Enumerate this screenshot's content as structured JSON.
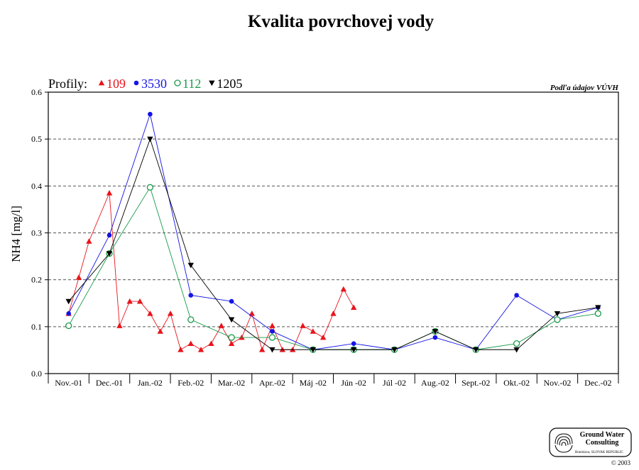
{
  "chart_data": {
    "type": "line",
    "title": "Kvalita povrchovej vody",
    "ylabel": "NH4 [mg/l]",
    "xlabel": "",
    "ylim": [
      0,
      0.6
    ],
    "yticks": [
      "0.0",
      "0.1",
      "0.2",
      "0.3",
      "0.4",
      "0.5",
      "0.6"
    ],
    "grid": "horizontal dashed",
    "months": [
      "Nov.-01",
      "Dec.-01",
      "Jan.-02",
      "Feb.-02",
      "Mar.-02",
      "Apr.-02",
      "Máj -02",
      "Jún -02",
      "Júl -02",
      "Aug.-02",
      "Sept.-02",
      "Okt.-02",
      "Nov.-02",
      "Dec.-02"
    ],
    "legend": {
      "prefix": "Profily:",
      "placement": "top-left above plot"
    },
    "source_note": "Podľa údajov VÚVH",
    "series": [
      {
        "name": "109",
        "marker": "triangle-up",
        "color": "#e8141b",
        "points": [
          [
            0,
            0.128
          ],
          [
            0.5,
            0.205
          ],
          [
            1,
            0.282
          ],
          [
            2,
            0.385
          ],
          [
            2.5,
            0.102
          ],
          [
            3,
            0.154
          ],
          [
            3.5,
            0.154
          ],
          [
            4,
            0.128
          ],
          [
            4.5,
            0.09
          ],
          [
            5,
            0.128
          ],
          [
            5.5,
            0.051
          ],
          [
            6,
            0.064
          ],
          [
            6.5,
            0.051
          ],
          [
            7,
            0.064
          ],
          [
            7.5,
            0.102
          ],
          [
            8,
            0.064
          ],
          [
            8.5,
            0.077
          ],
          [
            9,
            0.128
          ],
          [
            9.5,
            0.051
          ],
          [
            10,
            0.102
          ],
          [
            10.5,
            0.051
          ],
          [
            11,
            0.051
          ],
          [
            11.5,
            0.102
          ],
          [
            12,
            0.09
          ],
          [
            12.5,
            0.077
          ],
          [
            13,
            0.128
          ],
          [
            13.5,
            0.18
          ],
          [
            14,
            0.141
          ]
        ]
      },
      {
        "name": "3530",
        "marker": "circle",
        "color": "#1414e6",
        "points": [
          [
            0,
            0.128
          ],
          [
            2,
            0.295
          ],
          [
            4,
            0.553
          ],
          [
            6,
            0.167
          ],
          [
            8,
            0.154
          ],
          [
            10,
            0.09
          ],
          [
            12,
            0.051
          ],
          [
            14,
            0.064
          ],
          [
            16,
            0.051
          ],
          [
            18,
            0.077
          ],
          [
            20,
            0.051
          ],
          [
            22,
            0.167
          ],
          [
            24,
            0.115
          ],
          [
            26,
            0.141
          ]
        ]
      },
      {
        "name": "112",
        "marker": "circle-open",
        "color": "#1a9a4a",
        "points": [
          [
            0,
            0.102
          ],
          [
            2,
            0.256
          ],
          [
            4,
            0.397
          ],
          [
            6,
            0.115
          ],
          [
            8,
            0.077
          ],
          [
            10,
            0.077
          ],
          [
            12,
            0.051
          ],
          [
            14,
            0.051
          ],
          [
            16,
            0.051
          ],
          [
            18,
            0.09
          ],
          [
            20,
            0.051
          ],
          [
            22,
            0.064
          ],
          [
            24,
            0.115
          ],
          [
            26,
            0.128
          ]
        ]
      },
      {
        "name": "1205",
        "marker": "triangle-down",
        "color": "#000000",
        "points": [
          [
            0,
            0.154
          ],
          [
            2,
            0.256
          ],
          [
            4,
            0.5
          ],
          [
            6,
            0.231
          ],
          [
            8,
            0.115
          ],
          [
            10,
            0.051
          ],
          [
            12,
            0.051
          ],
          [
            14,
            0.051
          ],
          [
            16,
            0.051
          ],
          [
            18,
            0.09
          ],
          [
            20,
            0.051
          ],
          [
            22,
            0.051
          ],
          [
            24,
            0.128
          ],
          [
            26,
            0.141
          ]
        ]
      }
    ]
  },
  "logo": {
    "line1": "Ground Water",
    "line2": "Consulting",
    "line3": "Bratislava, SLOVAK REPUBLIC",
    "copyright": "© 2003"
  }
}
